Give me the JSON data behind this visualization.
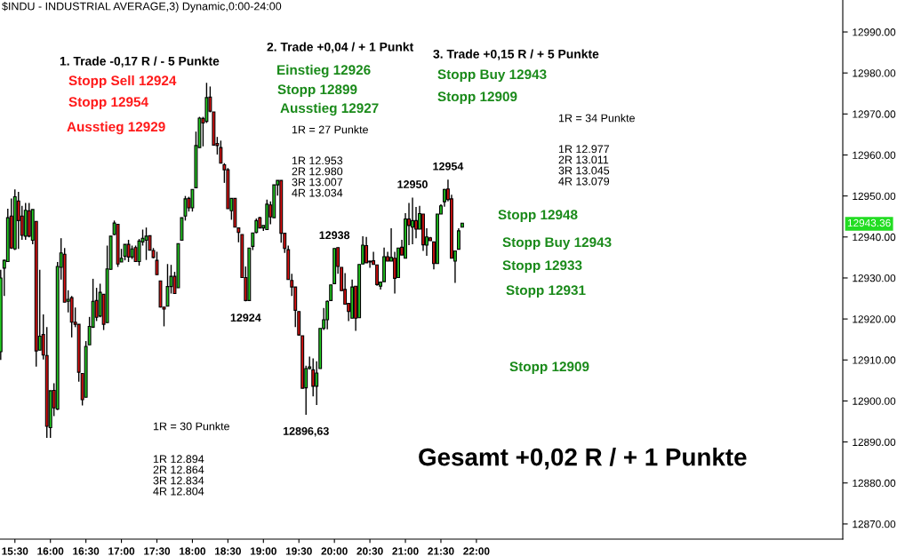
{
  "chart_data": {
    "type": "candlestick",
    "title": "$INDU - INDUSTRIAL AVERAGE,3) Dynamic,0:00-24:00",
    "colors": [
      "#22cc22",
      "#22cc22",
      "#22cc22",
      "#dd1111",
      "#22cc22",
      "#dd1111",
      "#dd1111",
      "#22cc22",
      "#dd1111",
      "#22cc22",
      "#dd1111",
      "#22cc22",
      "#dd1111",
      "#dd1111",
      "#22cc22",
      "#dd1111",
      "#22cc22",
      "#22cc22",
      "#dd1111",
      "#22cc22",
      "#dd1111",
      "#dd1111",
      "#dd1111",
      "#dd1111",
      "#22cc22",
      "#22cc22",
      "#22cc22",
      "#dd1111",
      "#22cc22",
      "#dd1111",
      "#22cc22",
      "#22cc22",
      "#22cc22",
      "#dd1111",
      "#22cc22",
      "#22cc22",
      "#dd1111",
      "#22cc22",
      "#dd1111",
      "#22cc22",
      "#22cc22",
      "#22cc22",
      "#dd1111",
      "#dd1111",
      "#dd1111",
      "#dd1111",
      "#dd1111",
      "#22cc22",
      "#22cc22",
      "#dd1111",
      "#22cc22",
      "#22cc22",
      "#22cc22",
      "#dd1111",
      "#22cc22",
      "#22cc22",
      "#22cc22",
      "#dd1111",
      "#22cc22",
      "#dd1111",
      "#dd1111",
      "#dd1111",
      "#dd1111",
      "#dd1111",
      "#dd1111",
      "#22cc22",
      "#dd1111",
      "#dd1111",
      "#dd1111",
      "#dd1111",
      "#22cc22",
      "#22cc22",
      "#22cc22",
      "#dd1111",
      "#22cc22",
      "#22cc22",
      "#dd1111",
      "#22cc22",
      "#22cc22",
      "#dd1111",
      "#dd1111",
      "#dd1111",
      "#dd1111",
      "#dd1111",
      "#dd1111",
      "#dd1111",
      "#22cc22",
      "#22cc22",
      "#dd1111",
      "#22cc22",
      "#22cc22",
      "#22cc22",
      "#22cc22",
      "#22cc22",
      "#22cc22",
      "#dd1111",
      "#dd1111",
      "#dd1111",
      "#dd1111",
      "#22cc22",
      "#dd1111",
      "#22cc22",
      "#22cc22",
      "#dd1111",
      "#dd1111",
      "#dd1111",
      "#dd1111",
      "#22cc22",
      "#22cc22",
      "#dd1111",
      "#22cc22",
      "#dd1111",
      "#22cc22",
      "#dd1111",
      "#22cc22",
      "#dd1111",
      "#22cc22",
      "#dd1111",
      "#22cc22",
      "#dd1111",
      "#22cc22",
      "#dd1111",
      "#dd1111",
      "#22cc22",
      "#22cc22",
      "#22cc22",
      "#dd1111",
      "#dd1111",
      "#22cc22",
      "#22cc22",
      "#22cc22"
    ],
    "x": [
      15.3,
      15.35,
      15.4,
      15.45,
      15.5,
      15.55,
      15.6,
      15.65,
      15.7,
      15.75,
      15.8,
      15.85,
      15.9,
      15.95,
      16.0,
      16.05,
      16.1,
      16.15,
      16.2,
      16.25,
      16.3,
      16.35,
      16.4,
      16.45,
      16.5,
      16.55,
      16.6,
      16.65,
      16.7,
      16.75,
      16.8,
      16.85,
      16.9,
      16.95,
      17.0,
      17.05,
      17.1,
      17.15,
      17.2,
      17.25,
      17.3,
      17.35,
      17.4,
      17.45,
      17.5,
      17.55,
      17.6,
      17.65,
      17.7,
      17.75,
      17.8,
      17.85,
      17.9,
      17.95,
      18.0,
      18.05,
      18.1,
      18.15,
      18.2,
      18.25,
      18.3,
      18.35,
      18.4,
      18.45,
      18.5,
      18.55,
      18.6,
      18.65,
      18.7,
      18.75,
      18.8,
      18.85,
      18.9,
      18.95,
      19.0,
      19.05,
      19.1,
      19.15,
      19.2,
      19.25,
      19.3,
      19.35,
      19.4,
      19.45,
      19.5,
      19.55,
      19.6,
      19.65,
      19.7,
      19.75,
      19.8,
      19.85,
      19.9,
      19.95,
      20.0,
      20.05,
      20.1,
      20.15,
      20.2,
      20.25,
      20.3,
      20.35,
      20.4,
      20.45,
      20.5,
      20.55,
      20.6,
      20.65,
      20.7,
      20.75,
      20.8,
      20.85,
      20.9,
      20.95,
      21.0,
      21.05,
      21.1,
      21.15,
      21.2,
      21.25,
      21.3,
      21.35,
      21.4,
      21.45,
      21.5,
      21.55,
      21.6,
      21.65,
      21.7,
      21.75,
      21.8
    ],
    "ohlc": [
      [
        12912,
        12932,
        12910,
        12930
      ],
      [
        12932.4,
        12934.5,
        12925.6,
        12934.3
      ],
      [
        12934.0,
        12946.9,
        12933.9,
        12944.7
      ],
      [
        12945.1,
        12949.4,
        12937.1,
        12937.3
      ],
      [
        12937.1,
        12951.6,
        12936.8,
        12949.8
      ],
      [
        12948.8,
        12951.0,
        12937.1,
        12944.0
      ],
      [
        12945.1,
        12947.6,
        12939.3,
        12940.4
      ],
      [
        12940.2,
        12948.3,
        12939.3,
        12946.5
      ],
      [
        12946.4,
        12948.3,
        12939.9,
        12940.2
      ],
      [
        12939.2,
        12946.7,
        12938.2,
        12946.7
      ],
      [
        12943.8,
        12943.8,
        12908.4,
        12912.2
      ],
      [
        12912.4,
        12932.0,
        12912.4,
        12915.8
      ],
      [
        12916.2,
        12921.1,
        12910.1,
        12911.2
      ],
      [
        12911.1,
        12918.0,
        12891.0,
        12893.8
      ],
      [
        12893.5,
        12902.5,
        12891.0,
        12902.5
      ],
      [
        12902.6,
        12904.3,
        12896.3,
        12898.3
      ],
      [
        12898.0,
        12933.9,
        12897.8,
        12932.8
      ],
      [
        12932.6,
        12939.7,
        12929.6,
        12936.1
      ],
      [
        12935.8,
        12937.3,
        12924.1,
        12924.1
      ],
      [
        12924.3,
        12927.0,
        12921.6,
        12924.8
      ],
      [
        12925.2,
        12925.6,
        12915.5,
        12919.2
      ],
      [
        12919.2,
        12922.8,
        12918.0,
        12918.7
      ],
      [
        12918.7,
        12918.7,
        12904.7,
        12907.0
      ],
      [
        12906.7,
        12906.7,
        12898.9,
        12900.3
      ],
      [
        12900.9,
        12914.6,
        12900.9,
        12913.3
      ],
      [
        12913.7,
        12920.5,
        12913.7,
        12918.2
      ],
      [
        12918.0,
        12929.8,
        12917.8,
        12924.3
      ],
      [
        12924.5,
        12927.6,
        12919.5,
        12920.4
      ],
      [
        12920.7,
        12928.6,
        12920.4,
        12926.5
      ],
      [
        12926.0,
        12926.0,
        12917.3,
        12918.7
      ],
      [
        12919.1,
        12937.9,
        12919.1,
        12932.2
      ],
      [
        12932.1,
        12940.2,
        12932.0,
        12940.2
      ],
      [
        12940.6,
        12944.0,
        12940.4,
        12943.4
      ],
      [
        12943.1,
        12943.1,
        12932.7,
        12933.4
      ],
      [
        12933.9,
        12937.1,
        12933.9,
        12934.8
      ],
      [
        12935.3,
        12938.2,
        12934.3,
        12938.2
      ],
      [
        12938.2,
        12939.3,
        12933.9,
        12935.1
      ],
      [
        12935.1,
        12937.9,
        12934.6,
        12937.1
      ],
      [
        12937.4,
        12937.9,
        12934.0,
        12934.0
      ],
      [
        12934.0,
        12939.5,
        12933.0,
        12939.0
      ],
      [
        12938.8,
        12941.8,
        12937.9,
        12939.7
      ],
      [
        12939.2,
        12942.3,
        12934.4,
        12940.2
      ],
      [
        12940.3,
        12940.3,
        12936.8,
        12936.8
      ],
      [
        12936.7,
        12937.3,
        12934.8,
        12935.0
      ],
      [
        12934.3,
        12936.4,
        12930.8,
        12930.8
      ],
      [
        12929.3,
        12929.3,
        12922.8,
        12922.9
      ],
      [
        12922.9,
        12922.9,
        12918.2,
        12922.4
      ],
      [
        12923.1,
        12933.4,
        12923.1,
        12927.9
      ],
      [
        12927.9,
        12933.2,
        12926.2,
        12930.4
      ],
      [
        12930.4,
        12931.5,
        12926.2,
        12926.2
      ],
      [
        12927.6,
        12938.4,
        12927.6,
        12938.4
      ],
      [
        12939.2,
        12944.7,
        12939.2,
        12944.7
      ],
      [
        12945.1,
        12950.0,
        12944.0,
        12949.3
      ],
      [
        12949.4,
        12949.8,
        12946.2,
        12947.1
      ],
      [
        12947.1,
        12951.6,
        12946.2,
        12951.6
      ],
      [
        12952.0,
        12965.7,
        12952.0,
        12962.3
      ],
      [
        12961.8,
        12969.3,
        12961.8,
        12969.0
      ],
      [
        12968.9,
        12969.3,
        12962.1,
        12967.8
      ],
      [
        12968.2,
        12977.6,
        12967.8,
        12974.0
      ],
      [
        12974.1,
        12976.7,
        12970.4,
        12970.7
      ],
      [
        12970.5,
        12970.5,
        12962.4,
        12962.4
      ],
      [
        12962.8,
        12964.4,
        12960.1,
        12962.3
      ],
      [
        12961.8,
        12963.5,
        12958.0,
        12958.0
      ],
      [
        12957.6,
        12958.0,
        12953.2,
        12956.4
      ],
      [
        12956.4,
        12956.8,
        12946.9,
        12946.9
      ],
      [
        12946.4,
        12949.4,
        12944.2,
        12949.4
      ],
      [
        12949.4,
        12949.4,
        12942.4,
        12942.4
      ],
      [
        12942.2,
        12942.2,
        12938.7,
        12941.1
      ],
      [
        12940.6,
        12940.6,
        12930.1,
        12930.1
      ],
      [
        12930.1,
        12932.8,
        12924.3,
        12924.5
      ],
      [
        12924.5,
        12937.3,
        12924.5,
        12937.3
      ],
      [
        12937.7,
        12941.0,
        12936.8,
        12941.0
      ],
      [
        12941.1,
        12944.5,
        12940.9,
        12944.0
      ],
      [
        12944.7,
        12944.9,
        12942.1,
        12942.2
      ],
      [
        12942.2,
        12942.8,
        12941.5,
        12942.8
      ],
      [
        12941.8,
        12949.1,
        12941.8,
        12948.0
      ],
      [
        12947.8,
        12948.7,
        12943.1,
        12944.9
      ],
      [
        12944.7,
        12952.7,
        12944.7,
        12952.7
      ],
      [
        12952.7,
        12953.8,
        12950.1,
        12953.8
      ],
      [
        12953.8,
        12953.8,
        12938.6,
        12940.9
      ],
      [
        12940.9,
        12940.9,
        12936.1,
        12937.2
      ],
      [
        12936.9,
        12937.9,
        12929.6,
        12929.6
      ],
      [
        12929.4,
        12931.0,
        12925.6,
        12927.8
      ],
      [
        12927.8,
        12927.8,
        12918.0,
        12922.1
      ],
      [
        12921.8,
        12921.8,
        12915.9,
        12916.1
      ],
      [
        12915.9,
        12915.9,
        12903.1,
        12903.1
      ],
      [
        12903.2,
        12908.6,
        12896.63,
        12907.9
      ],
      [
        12907.9,
        12910.8,
        12907.7,
        12908.3
      ],
      [
        12907.6,
        12910.4,
        12901.1,
        12903.6
      ],
      [
        12903.6,
        12909.7,
        12899.0,
        12906.8
      ],
      [
        12907.9,
        12917.7,
        12907.9,
        12917.7
      ],
      [
        12917.7,
        12922.7,
        12917.3,
        12919.8
      ],
      [
        12919.8,
        12924.5,
        12917.5,
        12924.3
      ],
      [
        12924.5,
        12928.3,
        12924.5,
        12928.3
      ],
      [
        12928.6,
        12937.2,
        12928.6,
        12937.2
      ],
      [
        12937.4,
        12937.4,
        12931.0,
        12932.8
      ],
      [
        12932.6,
        12932.6,
        12926.9,
        12926.9
      ],
      [
        12927.2,
        12931.2,
        12923.6,
        12923.6
      ],
      [
        12923.8,
        12923.8,
        12919.5,
        12921.8
      ],
      [
        12920.2,
        12929.6,
        12920.2,
        12927.8
      ],
      [
        12928.0,
        12928.0,
        12917.1,
        12920.2
      ],
      [
        12920.3,
        12933.3,
        12920.3,
        12933.3
      ],
      [
        12933.4,
        12940.2,
        12933.4,
        12938.0
      ],
      [
        12937.9,
        12940.0,
        12933.7,
        12933.7
      ],
      [
        12934.1,
        12934.2,
        12932.5,
        12933.9
      ],
      [
        12934.2,
        12936.4,
        12933.3,
        12933.3
      ],
      [
        12933.2,
        12933.2,
        12928.1,
        12928.4
      ],
      [
        12928.0,
        12929.0,
        12927.2,
        12929.0
      ],
      [
        12929.1,
        12937.4,
        12929.1,
        12935.2
      ],
      [
        12935.2,
        12936.4,
        12934.1,
        12934.1
      ],
      [
        12934.1,
        12942.1,
        12934.1,
        12935.0
      ],
      [
        12934.8,
        12936.4,
        12926.2,
        12929.9
      ],
      [
        12930.1,
        12937.3,
        12930.1,
        12937.3
      ],
      [
        12937.5,
        12939.3,
        12935.6,
        12935.6
      ],
      [
        12934.8,
        12945.8,
        12934.8,
        12944.4
      ],
      [
        12944.4,
        12948.3,
        12938.0,
        12942.8
      ],
      [
        12942.4,
        12949.6,
        12938.2,
        12944.0
      ],
      [
        12944.0,
        12947.3,
        12939.7,
        12941.9
      ],
      [
        12941.9,
        12947.6,
        12941.9,
        12945.7
      ],
      [
        12945.6,
        12945.6,
        12936.6,
        12938.1
      ],
      [
        12938.0,
        12942.1,
        12935.4,
        12940.0
      ],
      [
        12939.8,
        12940.0,
        12939.1,
        12939.1
      ],
      [
        12938.8,
        12938.8,
        12932.1,
        12933.5
      ],
      [
        12933.5,
        12945.6,
        12933.5,
        12945.6
      ],
      [
        12945.6,
        12948.0,
        12945.6,
        12947.6
      ],
      [
        12948.6,
        12951.7,
        12947.4,
        12951.6
      ],
      [
        12951.7,
        12954.0,
        12948.7,
        12949.1
      ],
      [
        12949.3,
        12950.3,
        12934.8,
        12934.8
      ],
      [
        12934.1,
        12936.6,
        12928.8,
        12936.6
      ],
      [
        12937.0,
        12942.1,
        12937.0,
        12941.5
      ],
      [
        12942.4,
        12943.4,
        12942.4,
        12943.36
      ]
    ],
    "xlim": [
      15.29,
      27.16
    ],
    "xticks": [
      {
        "value": 15.5,
        "label": "15:30"
      },
      {
        "value": 16.0,
        "label": "16:00"
      },
      {
        "value": 16.5,
        "label": "16:30"
      },
      {
        "value": 17.0,
        "label": "17:00"
      },
      {
        "value": 17.5,
        "label": "17:30"
      },
      {
        "value": 18.0,
        "label": "18:00"
      },
      {
        "value": 18.5,
        "label": "18:30"
      },
      {
        "value": 19.0,
        "label": "19:00"
      },
      {
        "value": 19.5,
        "label": "19:30"
      },
      {
        "value": 20.0,
        "label": "20:00"
      },
      {
        "value": 20.5,
        "label": "20:30"
      },
      {
        "value": 21.0,
        "label": "21:00"
      },
      {
        "value": 21.5,
        "label": "21:30"
      },
      {
        "value": 22.0,
        "label": "22:00"
      }
    ],
    "ylim": [
      12866.3,
      12997.8
    ],
    "yticks": [
      {
        "value": 12870,
        "label": "12870.00"
      },
      {
        "value": 12880,
        "label": "12880.00"
      },
      {
        "value": 12890,
        "label": "12890.00"
      },
      {
        "value": 12900,
        "label": "12900.00"
      },
      {
        "value": 12910,
        "label": "12910.00"
      },
      {
        "value": 12920,
        "label": "12920.00"
      },
      {
        "value": 12930,
        "label": "12930.00"
      },
      {
        "value": 12940,
        "label": "12940.00"
      },
      {
        "value": 12950,
        "label": "12950.00"
      },
      {
        "value": 12960,
        "label": "12960.00"
      },
      {
        "value": 12970,
        "label": "12970.00"
      },
      {
        "value": 12980,
        "label": "12980.00"
      },
      {
        "value": 12990,
        "label": "12990.00"
      }
    ],
    "annotations": [
      "1. Trade -0,17 R / - 5 Punkte",
      "Stopp Sell 12924",
      "Stopp 12954",
      "Ausstieg 12929",
      "2. Trade +0,04 / + 1 Punkt",
      "Einstieg 12926",
      "Stopp 12899",
      "Ausstieg 12927",
      "1R = 27 Punkte",
      "1R 12.953\n2R 12.980\n3R 13.007\n4R 13.034",
      "3. Trade +0,15 R / + 5 Punkte",
      "Stopp Buy 12943",
      "Stopp 12909",
      "1R = 34 Punkte",
      "1R 12.977\n2R 13.011\n3R 13.045\n4R 13.079",
      "Stopp 12948",
      "Stopp Buy 12943",
      "Stopp 12933",
      "Stopp 12931",
      "Stopp 12909",
      "1R = 30 Punkte",
      "1R 12.894\n2R 12.864\n3R 12.834\n4R 12.804",
      "Gesamt +0,02 R / + 1 Punkte",
      "12943.36",
      {
        "text": "12924",
        "x": 18.75,
        "y": 12924.3
      },
      {
        "text": "12896,63",
        "x": 19.6,
        "y": 12896.63
      },
      {
        "text": "12938",
        "x": 20.0,
        "y": 12937.2
      },
      {
        "text": "12950",
        "x": 21.1,
        "y": 12949.6
      },
      {
        "text": "12954",
        "x": 21.6,
        "y": 12954.0
      }
    ]
  }
}
